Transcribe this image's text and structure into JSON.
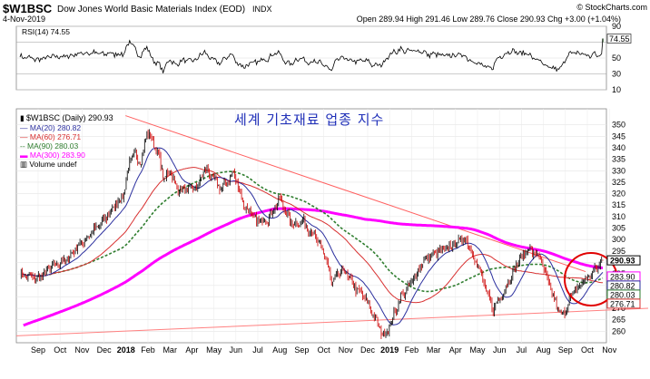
{
  "header": {
    "symbol": "$W1BSC",
    "name": "Dow Jones World Basic Materials Index (EOD)",
    "exchange": "INDX",
    "date": "4-Nov-2019",
    "watermark": "© StockCharts.com",
    "ohlc_text": "Open 289.94  High 291.46  Low 289.76  Close 290.93  Chg +3.00 (+1.04%)"
  },
  "rsi_panel": {
    "label": "RSI(14) 74.55",
    "value": 74.55,
    "levels": [
      90,
      70,
      50,
      30,
      10
    ],
    "tick_labels": [
      "90",
      "50",
      "30",
      "10"
    ],
    "value_tag": "74.55",
    "fill_colors": {
      "overbought": "#3a7a3a",
      "oversold": "#b04040"
    }
  },
  "legend": {
    "price": "$W1BSC (Daily) 290.93",
    "ma20": "MA(20) 280.82",
    "ma60": "MA(60) 276.71",
    "ma90": "MA(90) 280.03",
    "ma300": "MA(300) 283.90",
    "volume": "Volume undef"
  },
  "annotation": "세계 기초재료 업종 지수",
  "colors": {
    "up_candle": "#000000",
    "down_candle": "#cc0000",
    "ma20": "#2b2f9e",
    "ma60": "#d83030",
    "ma90": "#2e7d2e",
    "ma300": "#ff00ff",
    "trendline": "#ff6060",
    "circle": "#e00000"
  },
  "chart_data": {
    "type": "line",
    "ylim": [
      255,
      357
    ],
    "yticks": [
      260,
      265,
      270,
      275,
      280,
      285,
      290,
      295,
      300,
      305,
      310,
      315,
      320,
      325,
      330,
      335,
      340,
      345,
      350
    ],
    "x_tick_labels": [
      "Sep",
      "Oct",
      "Nov",
      "Dec",
      "2018",
      "Feb",
      "Mar",
      "Apr",
      "May",
      "Jun",
      "Jul",
      "Aug",
      "Sep",
      "Oct",
      "Nov",
      "Dec",
      "2019",
      "Feb",
      "Mar",
      "Apr",
      "May",
      "Jun",
      "Jul",
      "Aug",
      "Sep",
      "Oct",
      "Nov"
    ],
    "price_anchors": [
      [
        0,
        285
      ],
      [
        3,
        283
      ],
      [
        6,
        289
      ],
      [
        8,
        291
      ],
      [
        10,
        297
      ],
      [
        12,
        302
      ],
      [
        14,
        307
      ],
      [
        16,
        313
      ],
      [
        18,
        320
      ],
      [
        19,
        334
      ],
      [
        20,
        337
      ],
      [
        21,
        334
      ],
      [
        22,
        347
      ],
      [
        23,
        343
      ],
      [
        24,
        337
      ],
      [
        25,
        326
      ],
      [
        26,
        331
      ],
      [
        27,
        323
      ],
      [
        29,
        321
      ],
      [
        31,
        324
      ],
      [
        32,
        331
      ],
      [
        34,
        325
      ],
      [
        35,
        322
      ],
      [
        37,
        329
      ],
      [
        39,
        314
      ],
      [
        41,
        308
      ],
      [
        43,
        309
      ],
      [
        45,
        318
      ],
      [
        47,
        307
      ],
      [
        49,
        308
      ],
      [
        51,
        302
      ],
      [
        53,
        292
      ],
      [
        54,
        281
      ],
      [
        56,
        287
      ],
      [
        58,
        279
      ],
      [
        60,
        274
      ],
      [
        62,
        263
      ],
      [
        63,
        258
      ],
      [
        64,
        262
      ],
      [
        66,
        275
      ],
      [
        68,
        282
      ],
      [
        70,
        291
      ],
      [
        72,
        294
      ],
      [
        74,
        296
      ],
      [
        76,
        299
      ],
      [
        77,
        301
      ],
      [
        78,
        297
      ],
      [
        79,
        290
      ],
      [
        80,
        284
      ],
      [
        81,
        276
      ],
      [
        82,
        270
      ],
      [
        84,
        278
      ],
      [
        86,
        289
      ],
      [
        88,
        296
      ],
      [
        89,
        294
      ],
      [
        90,
        293
      ],
      [
        91,
        285
      ],
      [
        92,
        278
      ],
      [
        93,
        271
      ],
      [
        94,
        266
      ],
      [
        95,
        273
      ],
      [
        96,
        277
      ],
      [
        98,
        283
      ],
      [
        99,
        285
      ],
      [
        101,
        290.93
      ]
    ],
    "last_value": 290.93,
    "value_tags": [
      {
        "label": "290.93",
        "value": 290.93,
        "color": "#000000"
      },
      {
        "label": "283.90",
        "value": 283.9,
        "color": "#ff00ff"
      },
      {
        "label": "280.82",
        "value": 280.82,
        "color": "#2b2f9e"
      },
      {
        "label": "280.03",
        "value": 280.03,
        "color": "#2e7d2e"
      },
      {
        "label": "276.71",
        "value": 276.71,
        "color": "#d83030"
      }
    ],
    "trendlines": [
      {
        "name": "resistance",
        "from": [
          2018.05,
          354
        ],
        "to": [
          2019.82,
          286
        ]
      },
      {
        "name": "support",
        "from": [
          2017.63,
          258
        ],
        "to": [
          2019.85,
          269
        ]
      }
    ]
  }
}
